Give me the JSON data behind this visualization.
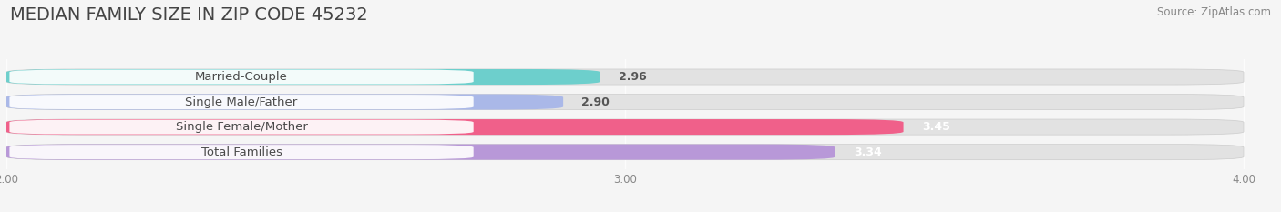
{
  "title": "MEDIAN FAMILY SIZE IN ZIP CODE 45232",
  "source": "Source: ZipAtlas.com",
  "categories": [
    "Married-Couple",
    "Single Male/Father",
    "Single Female/Mother",
    "Total Families"
  ],
  "values": [
    2.96,
    2.9,
    3.45,
    3.34
  ],
  "bar_colors": [
    "#6dcfcc",
    "#aab8e8",
    "#f0608a",
    "#b898d8"
  ],
  "background_color": "#f5f5f5",
  "bar_bg_color": "#e2e2e2",
  "xlim": [
    2.0,
    4.0
  ],
  "xticks": [
    2.0,
    3.0,
    4.0
  ],
  "xtick_labels": [
    "2.00",
    "3.00",
    "4.00"
  ],
  "label_fontsize": 9.5,
  "value_fontsize": 9.0,
  "title_fontsize": 14,
  "source_fontsize": 8.5,
  "value_colors": [
    "#555555",
    "#555555",
    "#ffffff",
    "#ffffff"
  ]
}
